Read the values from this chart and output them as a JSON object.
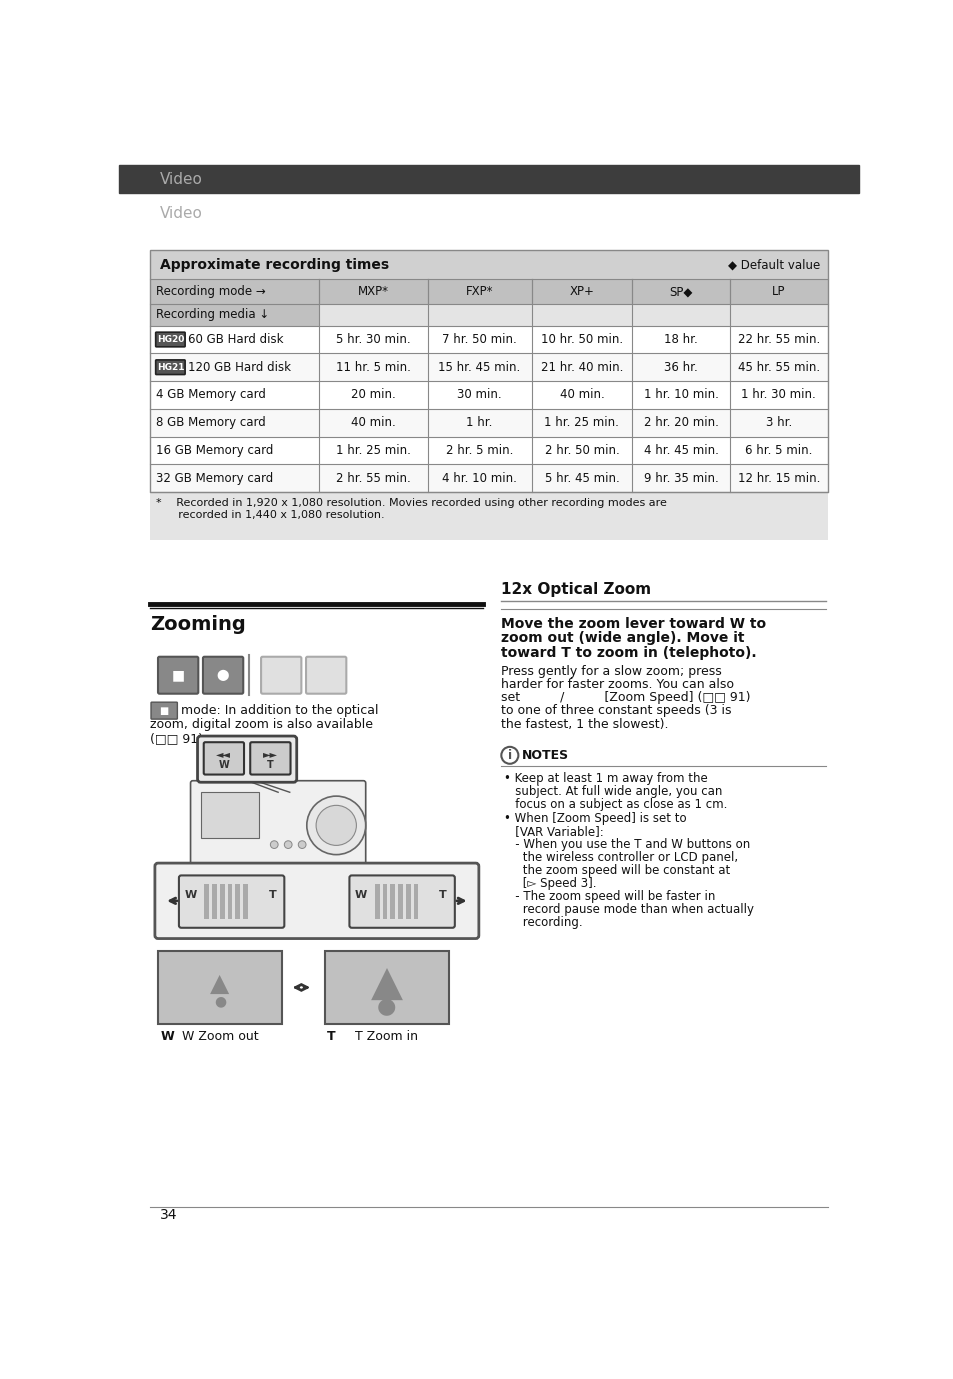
{
  "page_bg": "#ffffff",
  "header_bg": "#3d3d3d",
  "header_text_color": "#aaaaaa",
  "header_text": "Video",
  "page_number": "34",
  "table_title": "Approximate recording times",
  "table_title_bg": "#d0d0d0",
  "table_header_bg": "#c0c0c0",
  "table_outer_bg": "#e4e4e4",
  "table_inner_bg": "#ffffff",
  "default_label": "◆ Default value",
  "col_headers": [
    "Recording mode →",
    "MXP*",
    "FXP*",
    "XP+",
    "SP◆",
    "LP"
  ],
  "row_header2": "Recording media ↓",
  "rows": [
    {
      "label": "60 GB Hard disk",
      "hg_tag": "HG20",
      "values": [
        "5 hr. 30 min.",
        "7 hr. 50 min.",
        "10 hr. 50 min.",
        "18 hr.",
        "22 hr. 55 min."
      ]
    },
    {
      "label": "120 GB Hard disk",
      "hg_tag": "HG21",
      "values": [
        "11 hr. 5 min.",
        "15 hr. 45 min.",
        "21 hr. 40 min.",
        "36 hr.",
        "45 hr. 55 min."
      ]
    },
    {
      "label": "4 GB Memory card",
      "hg_tag": null,
      "values": [
        "20 min.",
        "30 min.",
        "40 min.",
        "1 hr. 10 min.",
        "1 hr. 30 min."
      ]
    },
    {
      "label": "8 GB Memory card",
      "hg_tag": null,
      "values": [
        "40 min.",
        "1 hr.",
        "1 hr. 25 min.",
        "2 hr. 20 min.",
        "3 hr."
      ]
    },
    {
      "label": "16 GB Memory card",
      "hg_tag": null,
      "values": [
        "1 hr. 25 min.",
        "2 hr. 5 min.",
        "2 hr. 50 min.",
        "4 hr. 45 min.",
        "6 hr. 5 min."
      ]
    },
    {
      "label": "32 GB Memory card",
      "hg_tag": null,
      "values": [
        "2 hr. 55 min.",
        "4 hr. 10 min.",
        "5 hr. 45 min.",
        "9 hr. 35 min.",
        "12 hr. 15 min."
      ]
    }
  ],
  "footnote_line1": "*  Recorded in 1,920 x 1,080 resolution. Movies recorded using other recording modes are",
  "footnote_line2": "  recorded in 1,440 x 1,080 resolution.",
  "section_left_title": "Zooming",
  "section_right_title": "12x Optical Zoom",
  "zoom_bold_lines": [
    "Move the zoom lever toward W to",
    "zoom out (wide angle). Move it",
    "toward T to zoom in (telephoto)."
  ],
  "zoom_body_lines": [
    "Press gently for a slow zoom; press",
    "harder for faster zooms. You can also",
    "set          /          [Zoom Speed] (□□ 91)",
    "to one of three constant speeds (3 is",
    "the fastest, 1 the slowest)."
  ],
  "mode_text_lines": [
    "mode: In addition to the optical",
    "zoom, digital zoom is also available",
    "(□□ 91)."
  ],
  "notes_title": "NOTES",
  "notes_lines": [
    "• Keep at least 1 m away from the",
    "   subject. At full wide angle, you can",
    "   focus on a subject as close as 1 cm.",
    "• When [Zoom Speed] is set to",
    "   [VAR Variable]:",
    "   - When you use the T and W buttons on",
    "     the wireless controller or LCD panel,",
    "     the zoom speed will be constant at",
    "     [▻ Speed 3].",
    "   - The zoom speed will be faster in",
    "     record pause mode than when actually",
    "     recording."
  ],
  "w_zoom_label": "W Zoom out",
  "t_zoom_label": "T Zoom in",
  "line_color": "#888888",
  "text_color": "#111111",
  "border_color": "#666666"
}
